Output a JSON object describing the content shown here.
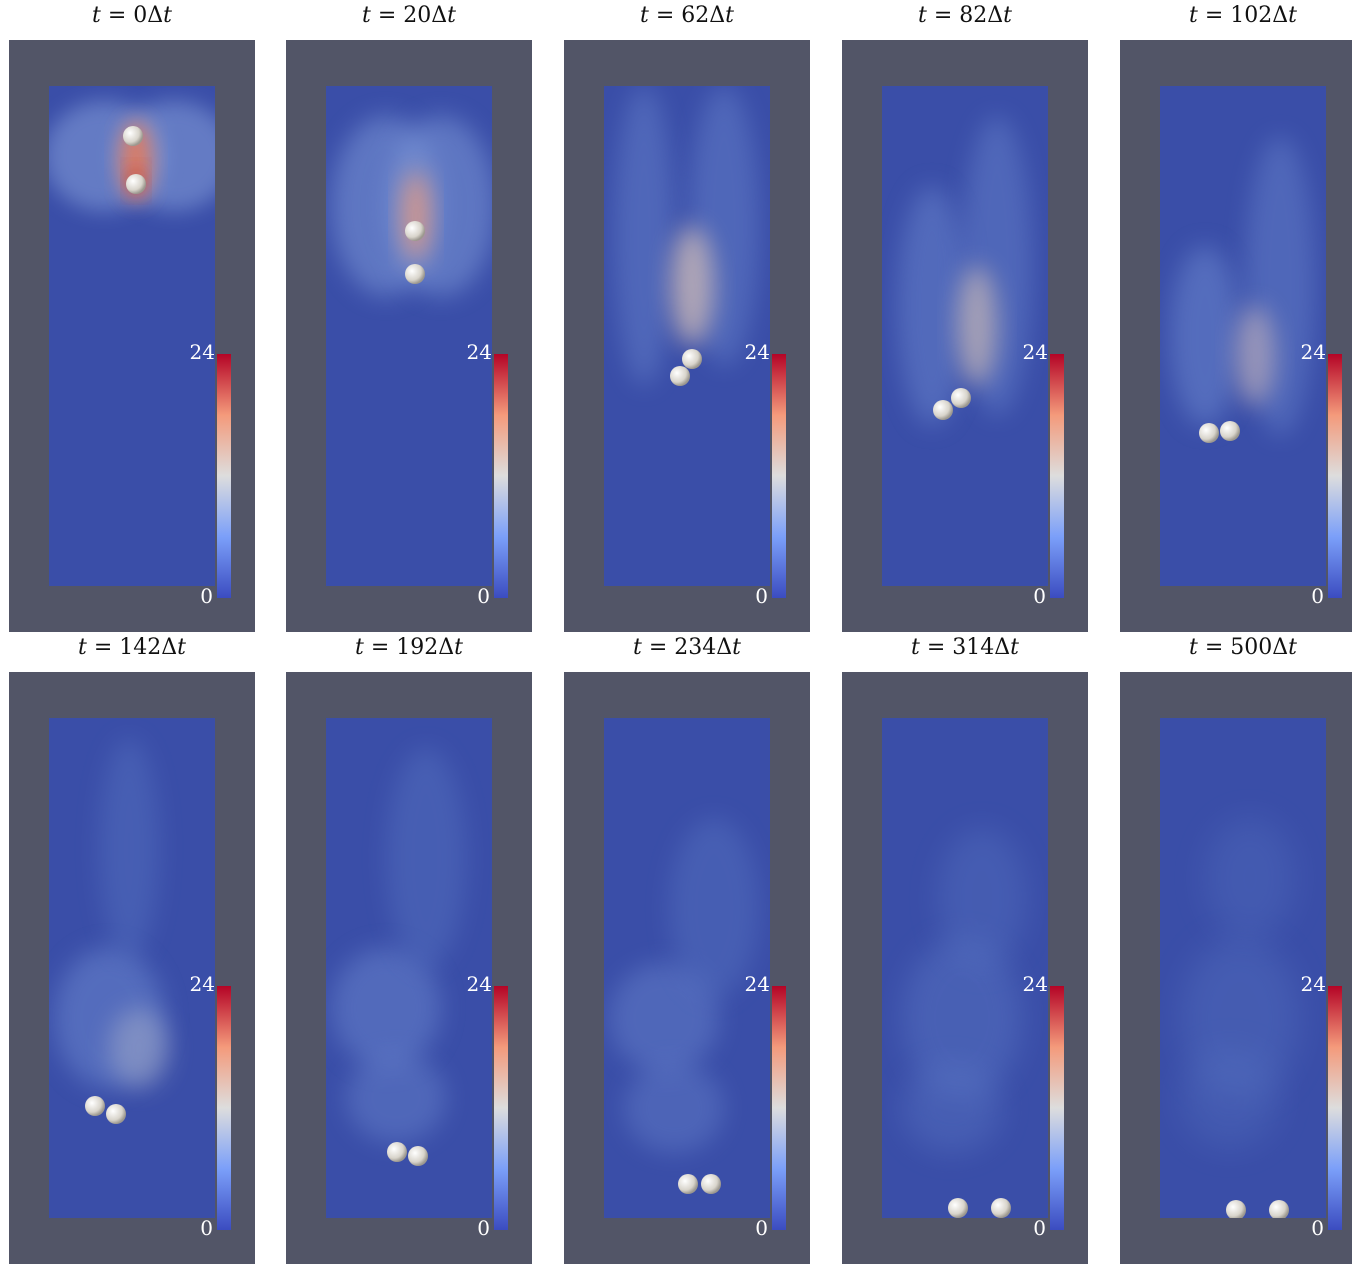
{
  "colorbar": {
    "max_label": "24",
    "min_label": "0"
  },
  "panels": [
    {
      "t_label": "t",
      "eq": " = ",
      "value": "0",
      "delta": "Δ",
      "dt": "t"
    },
    {
      "t_label": "t",
      "eq": " = ",
      "value": "20",
      "delta": "Δ",
      "dt": "t"
    },
    {
      "t_label": "t",
      "eq": " = ",
      "value": "62",
      "delta": "Δ",
      "dt": "t"
    },
    {
      "t_label": "t",
      "eq": " = ",
      "value": "82",
      "delta": "Δ",
      "dt": "t"
    },
    {
      "t_label": "t",
      "eq": " = ",
      "value": "102",
      "delta": "Δ",
      "dt": "t"
    },
    {
      "t_label": "t",
      "eq": " = ",
      "value": "142",
      "delta": "Δ",
      "dt": "t"
    },
    {
      "t_label": "t",
      "eq": " = ",
      "value": "192",
      "delta": "Δ",
      "dt": "t"
    },
    {
      "t_label": "t",
      "eq": " = ",
      "value": "234",
      "delta": "Δ",
      "dt": "t"
    },
    {
      "t_label": "t",
      "eq": " = ",
      "value": "314",
      "delta": "Δ",
      "dt": "t"
    },
    {
      "t_label": "t",
      "eq": " = ",
      "value": "500",
      "delta": "Δ",
      "dt": "t"
    }
  ],
  "colors": {
    "background_field": "#3a4ea8",
    "frame": "#525567",
    "colormap_low": "#3b4cc0",
    "colormap_mid": "#dddddd",
    "colormap_high": "#b40426",
    "sphere": "#e6e3dc"
  }
}
